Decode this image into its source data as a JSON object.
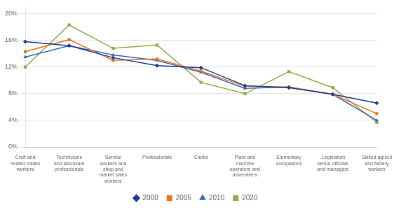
{
  "chart_data": {
    "type": "line",
    "categories": [
      "Craft and\nrelated trades\nworkers",
      "Technicians\nand associate\nprofessionals",
      "Service\nworkers and\nshop and\nmarket sales\nworkers",
      "Professionals",
      "Clerks",
      "Plant and\nmachine\noperators and\nassemblers",
      "Elementary\noccupations",
      ",Legislators\nsenior officials\nand managers",
      "Skilled agricul\nand fishery\nworkers"
    ],
    "series": [
      {
        "name": "2000",
        "color": "#1f3d91",
        "marker": "diamond",
        "values": [
          0.158,
          0.152,
          0.134,
          0.122,
          0.119,
          0.092,
          0.089,
          0.079,
          0.066
        ]
      },
      {
        "name": "2005",
        "color": "#e87722",
        "marker": "square",
        "values": [
          0.143,
          0.161,
          0.13,
          0.132,
          0.114,
          0.091,
          0.09,
          0.079,
          0.05
        ]
      },
      {
        "name": "2010",
        "color": "#3a6abf",
        "marker": "triangle",
        "values": [
          0.135,
          0.152,
          0.138,
          0.13,
          0.112,
          0.088,
          0.09,
          0.079,
          0.04
        ]
      },
      {
        "name": "2020",
        "color": "#8db04a",
        "marker": "square",
        "values": [
          0.12,
          0.183,
          0.148,
          0.153,
          0.097,
          0.08,
          0.113,
          0.089,
          0.037
        ]
      }
    ],
    "ylim": [
      0,
      0.21
    ],
    "yticks": [
      {
        "value": 0.0,
        "label": "0%"
      },
      {
        "value": 0.04,
        "label": "4%"
      },
      {
        "value": 0.08,
        "label": "8%"
      },
      {
        "value": 0.12,
        "label": "12%"
      },
      {
        "value": 0.16,
        "label": "16%"
      },
      {
        "value": 0.2,
        "label": "20%"
      }
    ],
    "grid": true,
    "legend": "bottom"
  }
}
